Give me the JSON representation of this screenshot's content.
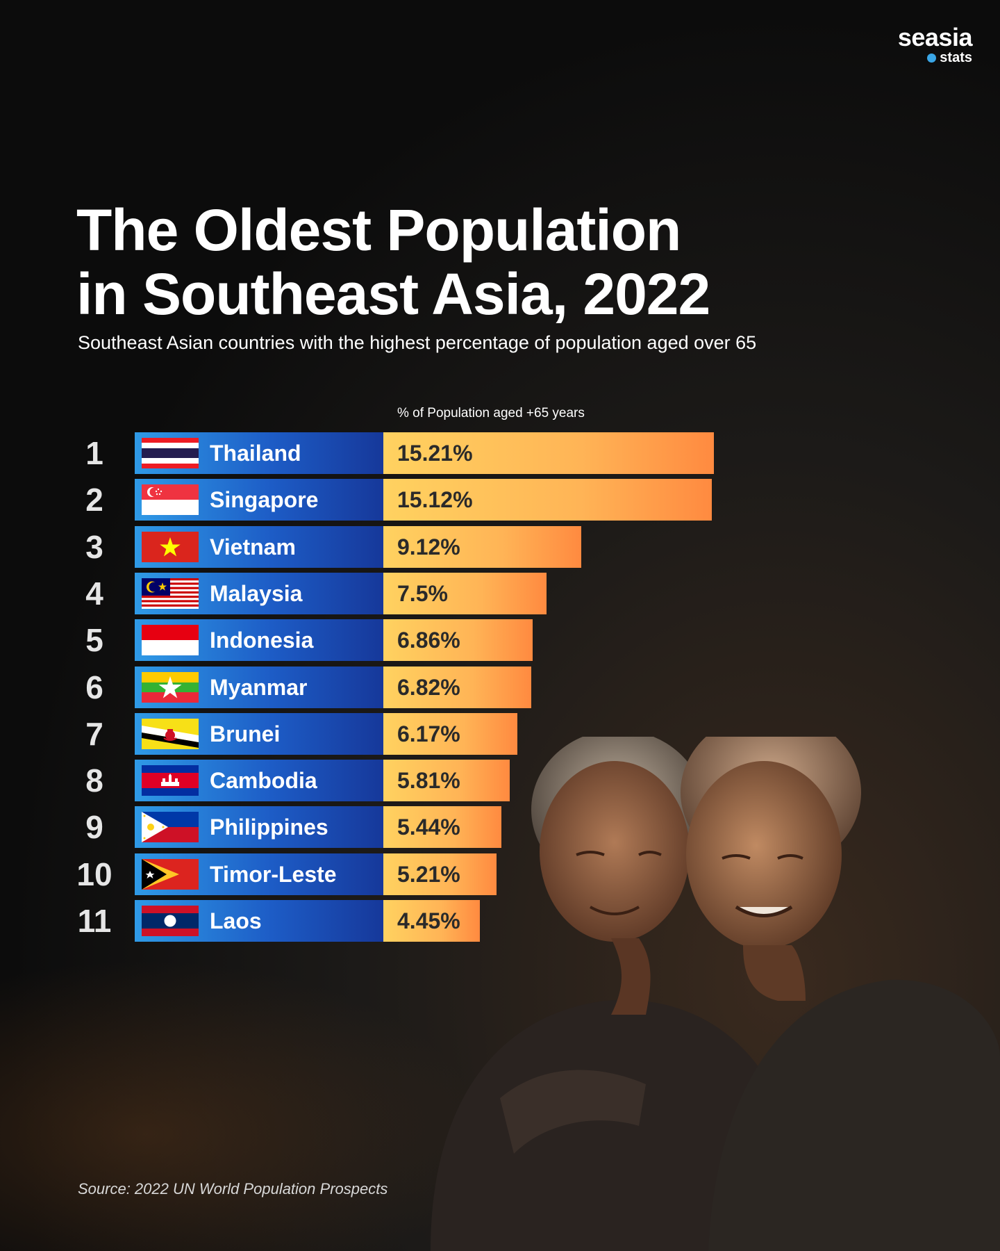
{
  "logo": {
    "main": "seasia",
    "sub": "stats",
    "accent": "#3aa6e6"
  },
  "title_line1": "The Oldest Population",
  "title_line2": "in Southeast Asia, 2022",
  "subtitle": "Southeast Asian countries with the highest percentage of population aged over 65",
  "source": "Source: 2022 UN World Population Prospects",
  "chart_data": {
    "type": "bar",
    "orientation": "horizontal",
    "title": "The Oldest Population in Southeast Asia, 2022",
    "subtitle": "Southeast Asian countries with the highest percentage of population aged over 65",
    "value_label": "% of Population aged +65 years",
    "xlim": [
      0,
      15.21
    ],
    "grid": false,
    "rows": [
      {
        "rank": "1",
        "country": "Thailand",
        "value": 15.21,
        "label": "15.21%",
        "flag": "thailand-flag"
      },
      {
        "rank": "2",
        "country": "Singapore",
        "value": 15.12,
        "label": "15.12%",
        "flag": "singapore-flag"
      },
      {
        "rank": "3",
        "country": "Vietnam",
        "value": 9.12,
        "label": "9.12%",
        "flag": "vietnam-flag"
      },
      {
        "rank": "4",
        "country": "Malaysia",
        "value": 7.5,
        "label": "7.5%",
        "flag": "malaysia-flag"
      },
      {
        "rank": "5",
        "country": "Indonesia",
        "value": 6.86,
        "label": "6.86%",
        "flag": "indonesia-flag"
      },
      {
        "rank": "6",
        "country": "Myanmar",
        "value": 6.82,
        "label": "6.82%",
        "flag": "myanmar-flag"
      },
      {
        "rank": "7",
        "country": "Brunei",
        "value": 6.17,
        "label": "6.17%",
        "flag": "brunei-flag"
      },
      {
        "rank": "8",
        "country": "Cambodia",
        "value": 5.81,
        "label": "5.81%",
        "flag": "cambodia-flag"
      },
      {
        "rank": "9",
        "country": "Philippines",
        "value": 5.44,
        "label": "5.44%",
        "flag": "philippines-flag"
      },
      {
        "rank": "10",
        "country": "Timor-Leste",
        "value": 5.21,
        "label": "5.21%",
        "flag": "timor-leste-flag"
      },
      {
        "rank": "11",
        "country": "Laos",
        "value": 4.45,
        "label": "4.45%",
        "flag": "laos-flag"
      }
    ],
    "colors": {
      "country_box": "#1d5cc6",
      "bar_start": "#ffd260",
      "bar_end": "#ff8a40"
    }
  }
}
